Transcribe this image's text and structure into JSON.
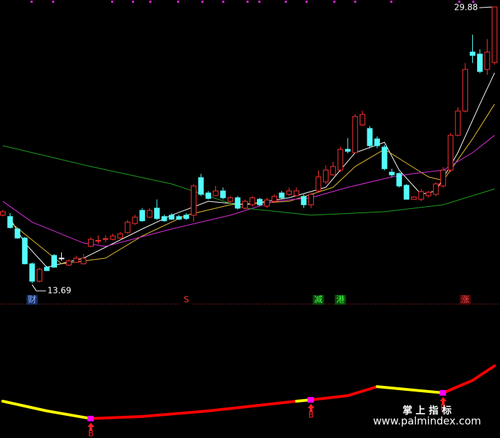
{
  "chart_data": [
    {
      "type": "candlestick",
      "open": [
        17.68,
        17.6,
        16.87,
        16.34,
        14.83,
        13.81,
        14.63,
        15.32,
        15.16,
        14.75,
        14.91,
        14.83,
        15.85,
        16.17,
        16.26,
        16.26,
        16.34,
        16.66,
        17.19,
        17.96,
        17.56,
        18.09,
        17.6,
        17.68,
        17.6,
        17.68,
        17.68,
        19.88,
        18.98,
        18.82,
        19.1,
        18.49,
        18.7,
        18.09,
        18.29,
        18.61,
        18.21,
        18.49,
        18.98,
        18.9,
        18.82,
        18.78,
        18.29,
        19.1,
        19.63,
        20.04,
        20.32,
        21.54,
        21.34,
        22.97,
        22.76,
        22.15,
        21.67,
        20.2,
        20.12,
        19.43,
        18.61,
        18.61,
        18.82,
        18.9,
        19.39,
        20.32,
        22.36,
        23.78,
        27.24,
        27.12,
        26.22,
        26.63
      ],
      "high": [
        18.0,
        17.8,
        16.95,
        16.4,
        14.9,
        14.6,
        14.7,
        15.4,
        15.5,
        15.1,
        15.3,
        15.4,
        16.4,
        16.5,
        16.5,
        16.6,
        16.7,
        17.4,
        17.7,
        18.1,
        18.1,
        18.6,
        17.7,
        17.8,
        17.7,
        17.8,
        19.5,
        20.1,
        19.1,
        19.4,
        19.3,
        18.8,
        18.8,
        18.6,
        18.8,
        18.7,
        18.7,
        18.9,
        19.1,
        19.3,
        19.3,
        18.9,
        19.0,
        20.3,
        20.6,
        20.8,
        21.7,
        22.2,
        23.6,
        23.8,
        22.9,
        22.3,
        21.8,
        20.4,
        20.2,
        19.5,
        18.8,
        19.2,
        19.1,
        19.6,
        20.5,
        22.5,
        24.0,
        26.6,
        28.26,
        27.4,
        28.0,
        29.88
      ],
      "low": [
        17.6,
        16.9,
        16.3,
        14.8,
        13.69,
        13.75,
        14.4,
        14.6,
        15.0,
        14.7,
        14.9,
        14.8,
        15.8,
        16.0,
        16.1,
        16.2,
        16.3,
        16.6,
        17.1,
        17.3,
        17.5,
        17.4,
        17.3,
        17.4,
        17.4,
        17.4,
        17.3,
        18.8,
        18.6,
        18.8,
        18.6,
        18.4,
        18.0,
        18.0,
        18.2,
        18.2,
        18.1,
        18.4,
        18.6,
        18.8,
        18.8,
        18.1,
        18.1,
        19.0,
        19.5,
        20.0,
        20.2,
        21.3,
        21.3,
        22.9,
        21.6,
        21.6,
        20.3,
        19.9,
        19.3,
        18.6,
        18.6,
        18.5,
        18.7,
        18.8,
        19.3,
        20.2,
        22.3,
        23.7,
        26.6,
        26.0,
        25.9,
        26.5
      ],
      "close": [
        17.88,
        16.95,
        16.34,
        14.83,
        13.81,
        14.51,
        14.43,
        14.63,
        15.16,
        15.0,
        15.16,
        15.16,
        16.26,
        16.2,
        16.3,
        16.46,
        16.58,
        17.27,
        17.56,
        17.35,
        17.96,
        17.48,
        17.35,
        17.44,
        17.44,
        17.48,
        19.39,
        18.9,
        18.66,
        19.1,
        18.7,
        18.7,
        18.09,
        18.49,
        18.7,
        18.29,
        18.57,
        18.78,
        18.7,
        19.1,
        19.1,
        18.29,
        18.9,
        19.92,
        20.32,
        20.53,
        21.54,
        21.42,
        23.46,
        23.58,
        21.75,
        21.75,
        20.4,
        20.04,
        19.39,
        18.61,
        18.74,
        19.06,
        19.02,
        19.51,
        20.32,
        22.36,
        23.78,
        26.22,
        27.04,
        26.1,
        27.24,
        29.88
      ],
      "up_color": "#ff3232",
      "down_color": "#54fcfc",
      "flat_color": "#ffffff",
      "series": [
        {
          "color": "#ffffff",
          "x": [
            1,
            3,
            6,
            11,
            19,
            23,
            28,
            33,
            39,
            44,
            48,
            52,
            54,
            57,
            59,
            62,
            65,
            67
          ],
          "values": [
            17.48,
            16.05,
            14.63,
            15.16,
            16.87,
            17.68,
            18.49,
            18.29,
            18.7,
            19.31,
            21.34,
            21.95,
            20.32,
            18.9,
            19.1,
            21.34,
            24.19,
            26.02
          ]
        },
        {
          "color": "#e8c030",
          "x": [
            1,
            8,
            14,
            19,
            25,
            31,
            39,
            45,
            48,
            52,
            55,
            58,
            60,
            64,
            67
          ],
          "values": [
            17.27,
            14.83,
            15.16,
            16.46,
            17.68,
            18.29,
            18.49,
            19.31,
            20.53,
            21.54,
            20.73,
            19.92,
            19.71,
            22.15,
            24.19
          ]
        },
        {
          "color": "#e030e0",
          "x": [
            0,
            4,
            11,
            14,
            23,
            31,
            37,
            42,
            47,
            53,
            56,
            60,
            64,
            67
          ],
          "values": [
            18.49,
            17.27,
            16.05,
            15.85,
            16.87,
            17.68,
            18.49,
            18.7,
            19.31,
            19.92,
            20.12,
            20.32,
            21.34,
            22.36
          ]
        },
        {
          "color": "#20a020",
          "x": [
            0,
            12,
            23,
            33,
            42,
            52,
            60,
            67
          ],
          "values": [
            21.75,
            20.53,
            19.51,
            18.09,
            17.68,
            17.88,
            18.29,
            19.22
          ]
        }
      ],
      "ylim": [
        13.0,
        30.29
      ],
      "max_label": 29.88,
      "min_label": 13.69,
      "signals": [
        {
          "x": 4,
          "label": "财",
          "color": "#8fb8ff",
          "bg": "#1a2e66"
        },
        {
          "x": 25,
          "label": "S",
          "color": "#ff3030",
          "bg": "#000000"
        },
        {
          "x": 43,
          "label": "减",
          "color": "#40ff40",
          "bg": "#0a4a0a"
        },
        {
          "x": 46,
          "label": "港",
          "color": "#40ff40",
          "bg": "#0a4a0a"
        },
        {
          "x": 63,
          "label": "涨",
          "color": "#ff4040",
          "bg": "#4a0a0a"
        }
      ]
    },
    {
      "type": "line",
      "x": [
        0,
        6,
        12,
        19,
        28,
        40,
        42,
        47,
        51,
        56,
        60,
        64,
        67
      ],
      "values": [
        47,
        33,
        22,
        25,
        33,
        47,
        49,
        55,
        68,
        63,
        59,
        77,
        98
      ],
      "segment_colors": [
        "#ffff00",
        "#ffff00",
        "#ff0000",
        "#ff0000",
        "#ff0000",
        "#ffff00",
        "#ff0000",
        "#ff0000",
        "#ffff00",
        "#ffff00",
        "#ff0000",
        "#ff0000"
      ],
      "ylim": [
        0,
        110
      ],
      "signals": [
        {
          "x": 12,
          "label": "B"
        },
        {
          "x": 42,
          "label": "B"
        },
        {
          "x": 60,
          "label": "B"
        }
      ]
    }
  ],
  "watermark": {
    "title": "掌 上 指 标",
    "url": "www.palmindex.com"
  }
}
